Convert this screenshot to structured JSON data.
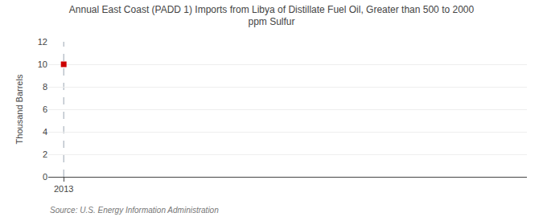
{
  "chart_data": {
    "type": "scatter",
    "title": "Annual East Coast (PADD 1) Imports from Libya of Distillate Fuel Oil, Greater than 500 to 2000\nppm Sulfur",
    "ylabel": "Thousand Barrels",
    "source": "Source: U.S. Energy Information Administration",
    "x": [
      2013
    ],
    "values": [
      10
    ],
    "color": "#cc0000",
    "marker": "square",
    "vline": 2013,
    "xlim": [
      2012.7,
      2022.0
    ],
    "xticks": [
      2013
    ],
    "ylim": [
      0,
      12
    ],
    "yticks": [
      0,
      2,
      4,
      6,
      8,
      10,
      12
    ],
    "grid": "y"
  }
}
